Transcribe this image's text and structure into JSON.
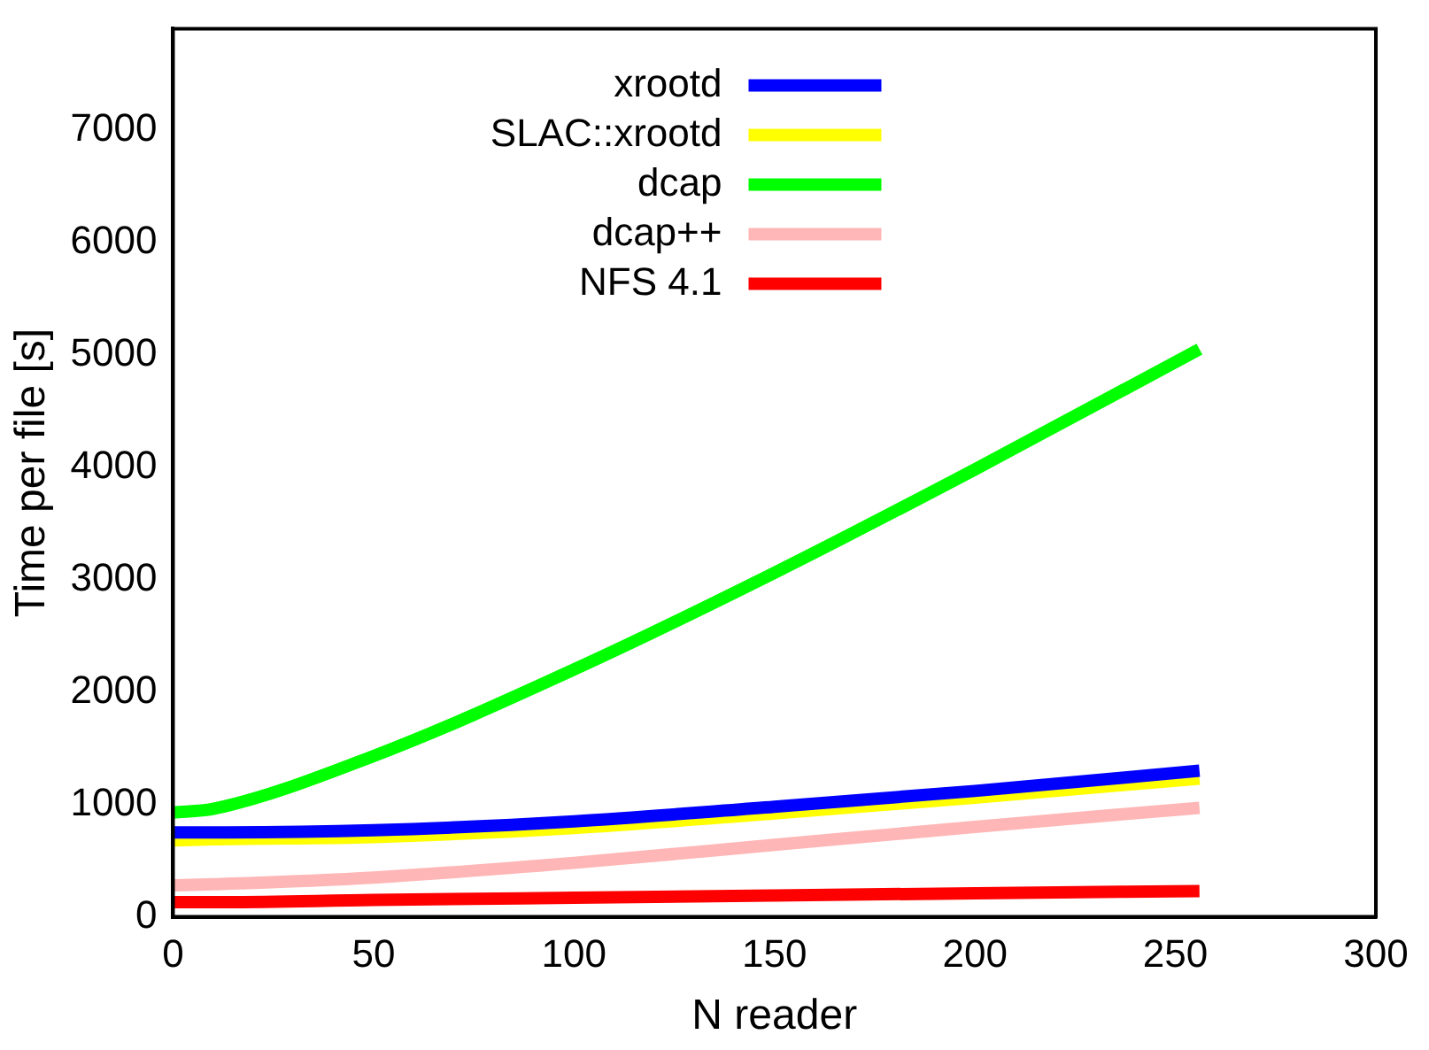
{
  "chart_data": {
    "type": "line",
    "xlabel": "N reader",
    "ylabel": "Time per file [s]",
    "xlim": [
      0,
      300
    ],
    "xticks": [
      0,
      50,
      100,
      150,
      200,
      250,
      300
    ],
    "ylim": [
      0,
      7900
    ],
    "yticks": [
      0,
      1000,
      2000,
      3000,
      4000,
      5000,
      6000,
      7000
    ],
    "grid": false,
    "legend": "top",
    "marker": "none",
    "line_style": "solid",
    "series": [
      {
        "name": "xrootd",
        "color": "#0000ff",
        "x": [
          0,
          10,
          50,
          100,
          150,
          200,
          256
        ],
        "values": [
          750,
          750,
          770,
          850,
          980,
          1120,
          1300
        ]
      },
      {
        "name": "SLAC::xrootd",
        "color": "#ffff00",
        "x": [
          0,
          10,
          50,
          100,
          150,
          200,
          256
        ],
        "values": [
          680,
          690,
          710,
          790,
          920,
          1060,
          1230
        ]
      },
      {
        "name": "dcap",
        "color": "#00ff00",
        "x": [
          0,
          10,
          50,
          100,
          150,
          200,
          256
        ],
        "values": [
          930,
          960,
          1430,
          2200,
          3060,
          3980,
          5050
        ]
      },
      {
        "name": "dcap++",
        "color": "#ffb6b6",
        "x": [
          0,
          10,
          50,
          100,
          150,
          200,
          256
        ],
        "values": [
          280,
          290,
          350,
          480,
          640,
          800,
          970
        ]
      },
      {
        "name": "NFS 4.1",
        "color": "#ff0000",
        "x": [
          0,
          10,
          50,
          100,
          150,
          200,
          256
        ],
        "values": [
          130,
          130,
          150,
          170,
          190,
          210,
          230
        ]
      }
    ]
  }
}
